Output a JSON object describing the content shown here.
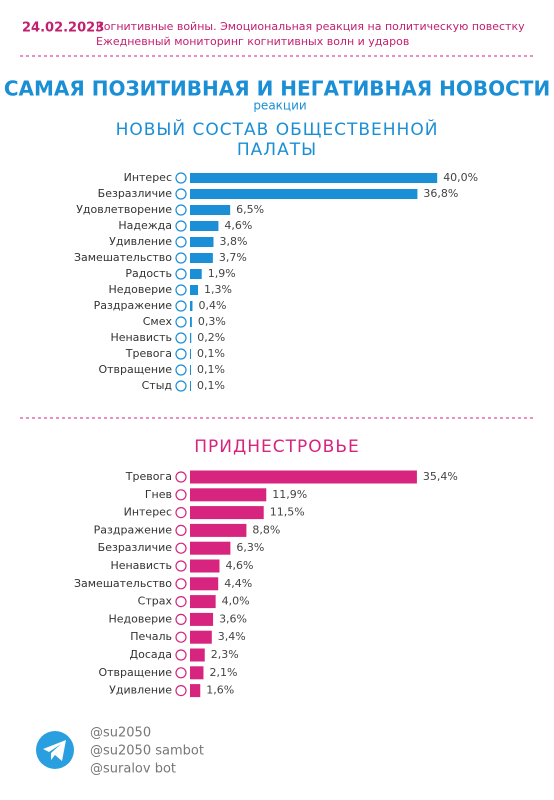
{
  "header": {
    "date": "24.02.2023",
    "line1": "Когнитивные войны. Эмоциональная реакция на политическую повестку",
    "line2": "Ежедневный мониторинг когнитивных волн и ударов"
  },
  "main_title": "САМАЯ ПОЗИТИВНАЯ И НЕГАТИВНАЯ НОВОСТИ",
  "main_subtitle": "реакции",
  "chart_data": [
    {
      "type": "bar",
      "title": "НОВЫЙ СОСТАВ ОБЩЕСТВЕННОЙ ПАЛАТЫ",
      "color": "#1b8fd5",
      "categories": [
        "Интерес",
        "Безразличие",
        "Удовлетворение",
        "Надежда",
        "Удивление",
        "Замешательство",
        "Радость",
        "Недоверие",
        "Раздражение",
        "Смех",
        "Ненависть",
        "Тревога",
        "Отвращение",
        "Стыд"
      ],
      "values": [
        40.0,
        36.8,
        6.5,
        4.6,
        3.8,
        3.7,
        1.9,
        1.3,
        0.4,
        0.3,
        0.2,
        0.1,
        0.1,
        0.1
      ],
      "value_labels": [
        "40,0%",
        "36,8%",
        "6,5%",
        "4,6%",
        "3,8%",
        "3,7%",
        "1,9%",
        "1,3%",
        "0,4%",
        "0,3%",
        "0,2%",
        "0,1%",
        "0,1%",
        "0,1%"
      ]
    },
    {
      "type": "bar",
      "title": "ПРИДНЕСТРОВЬЕ",
      "color": "#d6247f",
      "categories": [
        "Тревога",
        "Гнев",
        "Интерес",
        "Раздражение",
        "Безразличие",
        "Ненависть",
        "Замешательство",
        "Страх",
        "Недоверие",
        "Печаль",
        "Досада",
        "Отвращение",
        "Удивление"
      ],
      "values": [
        35.4,
        11.9,
        11.5,
        8.8,
        6.3,
        4.6,
        4.4,
        4.0,
        3.6,
        3.4,
        2.3,
        2.1,
        1.6
      ],
      "value_labels": [
        "35,4%",
        "11,9%",
        "11,5%",
        "8,8%",
        "6,3%",
        "4,6%",
        "4,4%",
        "4,0%",
        "3,6%",
        "3,4%",
        "2,3%",
        "2,1%",
        "1,6%"
      ]
    }
  ],
  "footer": {
    "handles": [
      "@su2050",
      "@su2050 sambot",
      "@suralov bot"
    ]
  }
}
